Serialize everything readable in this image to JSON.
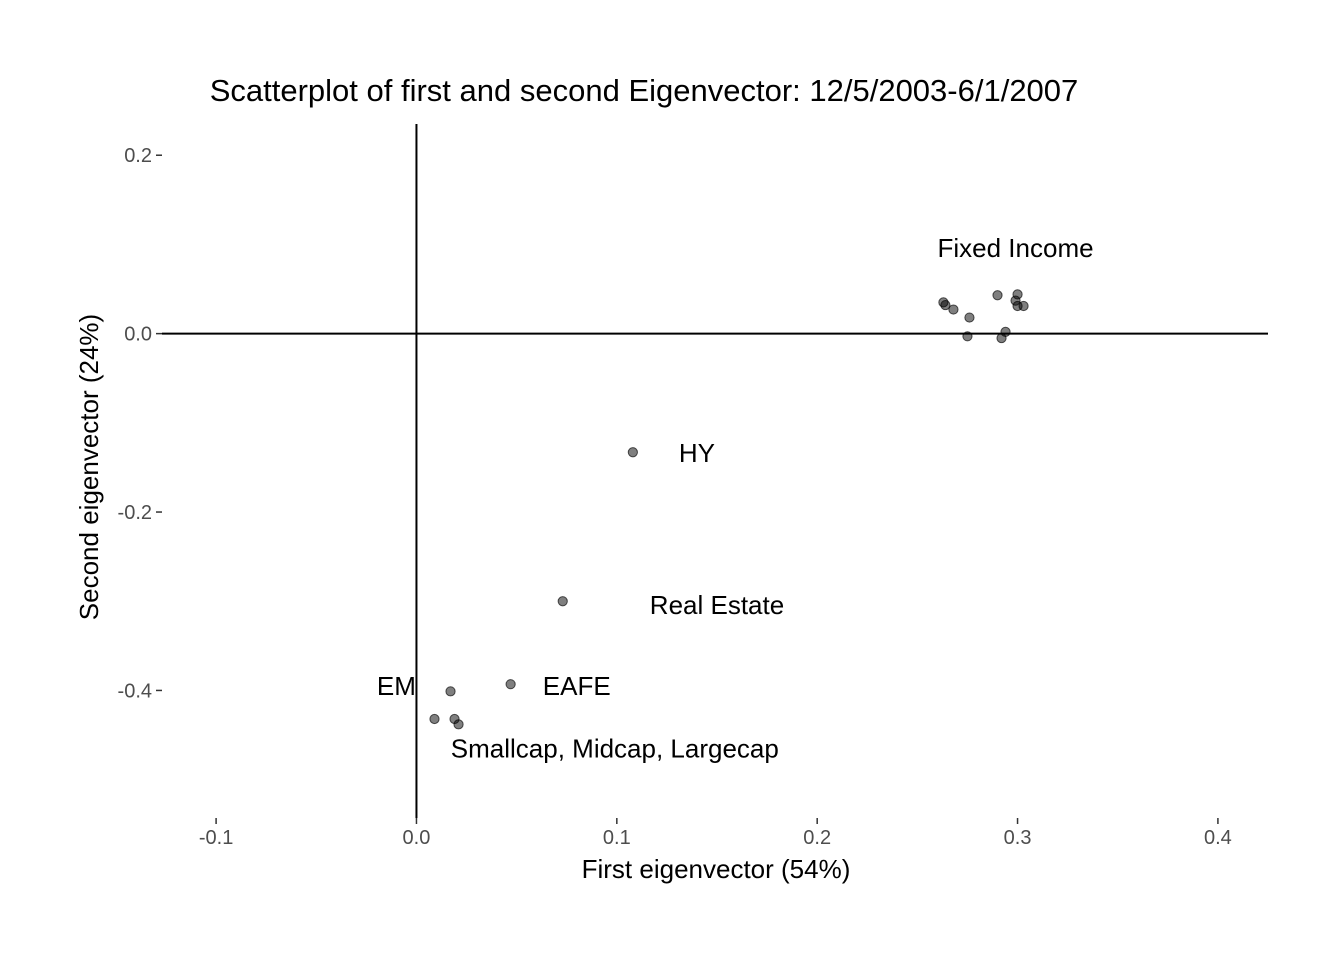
{
  "chart_data": {
    "type": "scatter",
    "title": "Scatterplot of first and second Eigenvector: 12/5/2003-6/1/2007",
    "xlabel": "First eigenvector (54%)",
    "ylabel": "Second eigenvector (24%)",
    "xlim": [
      -0.127,
      0.425
    ],
    "ylim": [
      -0.543,
      0.235
    ],
    "x_ticks": [
      -0.1,
      0.0,
      0.1,
      0.2,
      0.3,
      0.4
    ],
    "x_tick_labels": [
      "-0.1",
      "0.0",
      "0.1",
      "0.2",
      "0.3",
      "0.4"
    ],
    "y_ticks": [
      0.2,
      0.0,
      -0.2,
      -0.4
    ],
    "y_tick_labels": [
      "0.2",
      "0.0",
      "-0.2",
      "-0.4"
    ],
    "grid": false,
    "zero_lines": true,
    "point_color": "#000000",
    "point_alpha": 0.5,
    "points": [
      {
        "x": 0.263,
        "y": 0.035
      },
      {
        "x": 0.264,
        "y": 0.032
      },
      {
        "x": 0.268,
        "y": 0.027
      },
      {
        "x": 0.276,
        "y": 0.018
      },
      {
        "x": 0.275,
        "y": -0.003
      },
      {
        "x": 0.29,
        "y": 0.043
      },
      {
        "x": 0.299,
        "y": 0.037
      },
      {
        "x": 0.3,
        "y": 0.044
      },
      {
        "x": 0.3,
        "y": 0.031
      },
      {
        "x": 0.303,
        "y": 0.031
      },
      {
        "x": 0.294,
        "y": 0.002
      },
      {
        "x": 0.292,
        "y": -0.005
      },
      {
        "x": 0.108,
        "y": -0.133
      },
      {
        "x": 0.073,
        "y": -0.3
      },
      {
        "x": 0.047,
        "y": -0.393
      },
      {
        "x": 0.017,
        "y": -0.401
      },
      {
        "x": 0.009,
        "y": -0.432
      },
      {
        "x": 0.019,
        "y": -0.432
      },
      {
        "x": 0.021,
        "y": -0.438
      }
    ],
    "annotations": [
      {
        "text": "Fixed Income",
        "x": 0.299,
        "y": 0.096
      },
      {
        "text": "HY",
        "x": 0.14,
        "y": -0.134
      },
      {
        "text": "Real Estate",
        "x": 0.15,
        "y": -0.304
      },
      {
        "text": "EAFE",
        "x": 0.08,
        "y": -0.395
      },
      {
        "text": "EM",
        "x": -0.01,
        "y": -0.395
      },
      {
        "text": "Smallcap, Midcap, Largecap",
        "x": 0.099,
        "y": -0.465
      }
    ]
  }
}
